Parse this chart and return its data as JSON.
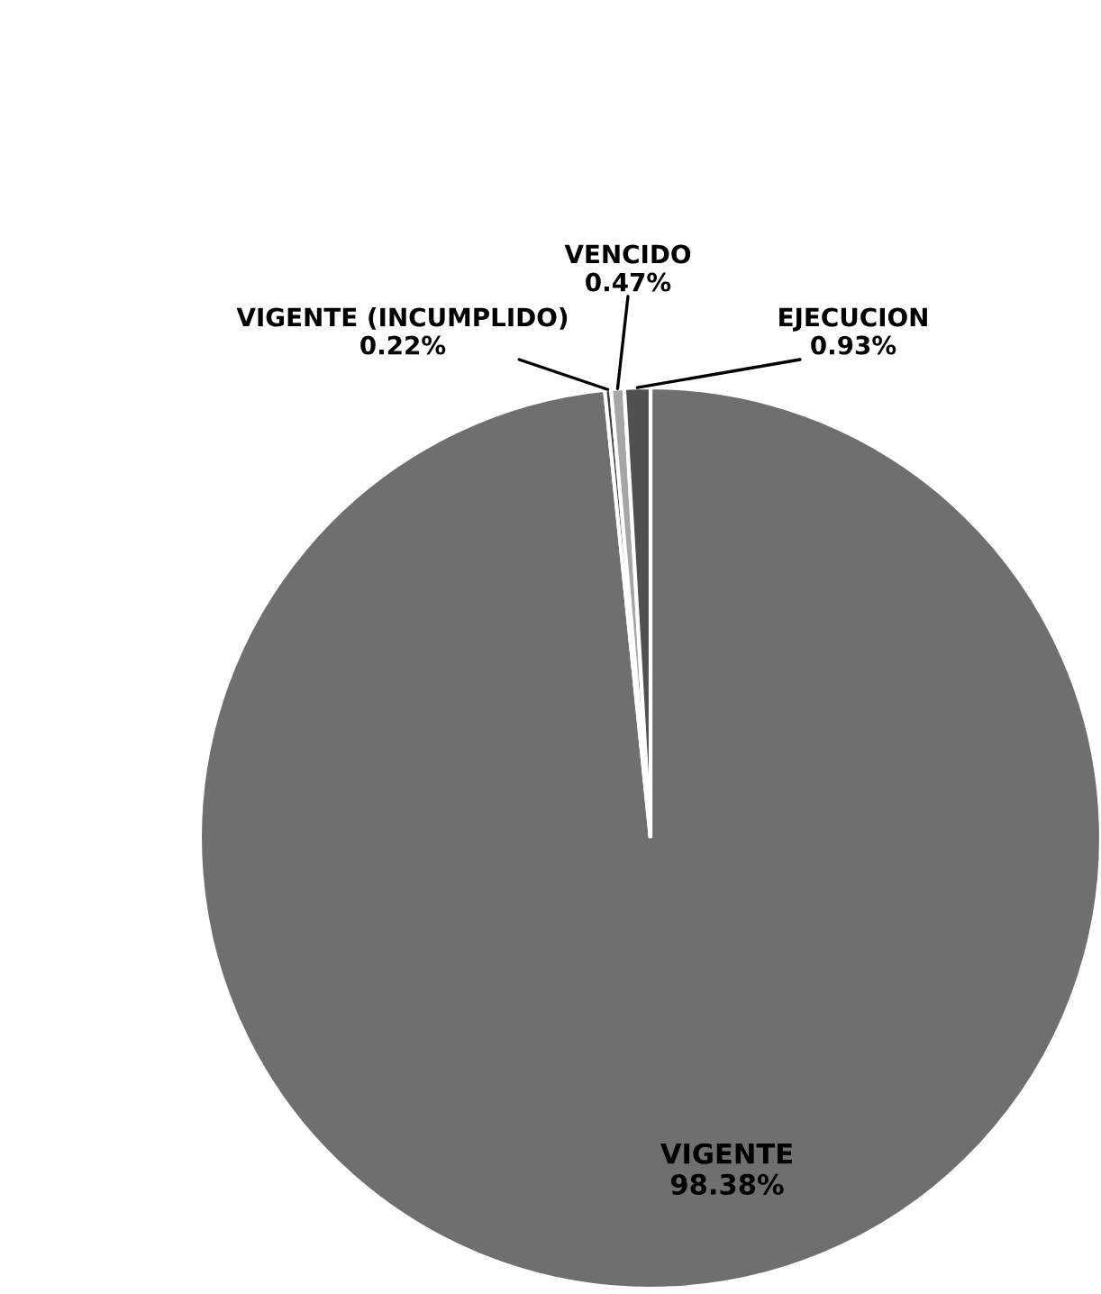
{
  "chart_data": {
    "type": "pie",
    "categories": [
      "VIGENTE",
      "VIGENTE (INCUMPLIDO)",
      "VENCIDO",
      "EJECUCION"
    ],
    "values": [
      98.38,
      0.22,
      0.47,
      0.93
    ],
    "colors": [
      "#6f6f6f",
      "#3f3f3f",
      "#a6a6a6",
      "#505050"
    ],
    "value_labels": [
      "98.38%",
      "0.22%",
      "0.47%",
      "0.93%"
    ],
    "legend": false
  }
}
